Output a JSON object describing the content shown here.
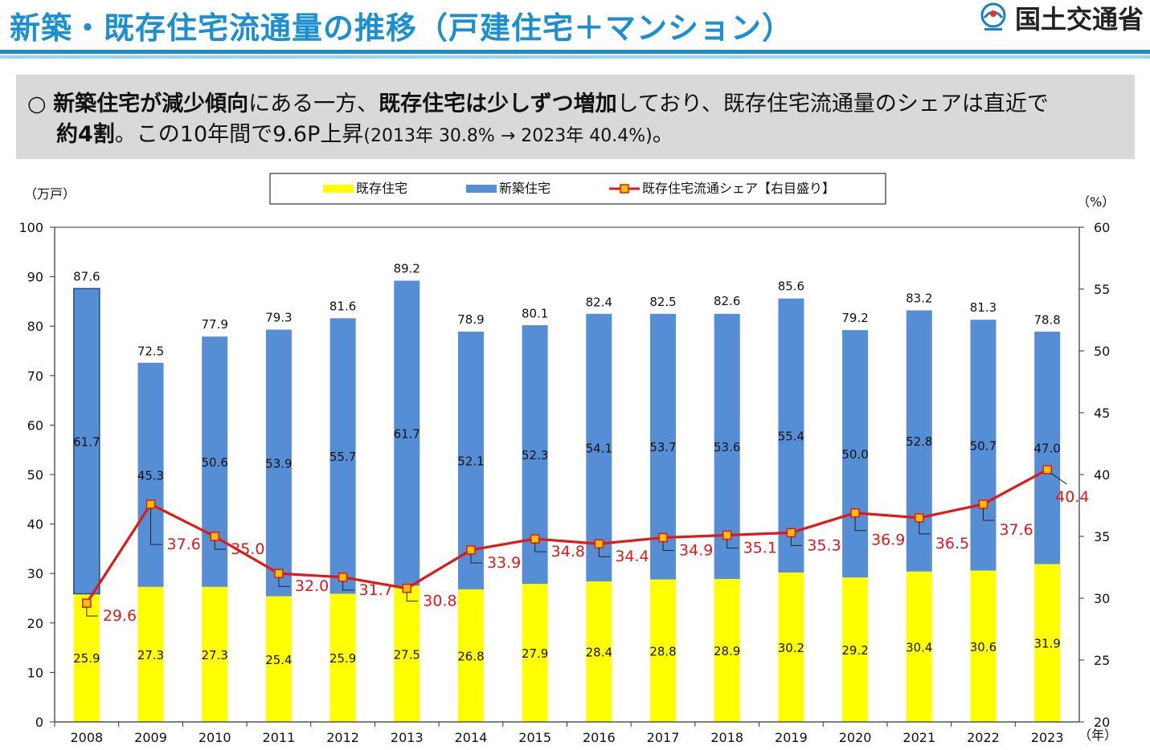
{
  "header": {
    "title": "新築・既存住宅流通量の推移（戸建住宅＋マンション）",
    "ministry": "国土交通省"
  },
  "summary": {
    "bullet": "○",
    "p1": "新築住宅が減少傾向",
    "p2": "にある一方、",
    "p3": "既存住宅は少しずつ増加",
    "p4": "しており、既存住宅流通量のシェアは直近で",
    "p5": "約4割",
    "p6": "。この10年間で9.6P上昇",
    "p7": "(2013年 30.8% → 2023年 40.4%)",
    "p8": "。"
  },
  "chart_data": {
    "type": "bar",
    "stacked": true,
    "categories": [
      "2008",
      "2009",
      "2010",
      "2011",
      "2012",
      "2013",
      "2014",
      "2015",
      "2016",
      "2017",
      "2018",
      "2019",
      "2020",
      "2021",
      "2022",
      "2023"
    ],
    "series": [
      {
        "name": "既存住宅",
        "color": "#ffff00",
        "values": [
          25.9,
          27.3,
          27.3,
          25.4,
          25.9,
          27.5,
          26.8,
          27.9,
          28.4,
          28.8,
          28.9,
          30.2,
          29.2,
          30.4,
          30.6,
          31.9
        ]
      },
      {
        "name": "新築住宅",
        "color": "#558ed5",
        "values": [
          61.7,
          45.3,
          50.6,
          53.9,
          55.7,
          61.7,
          52.1,
          52.3,
          54.1,
          53.7,
          53.6,
          55.4,
          50.0,
          52.8,
          50.7,
          47.0
        ]
      }
    ],
    "totals": [
      87.6,
      72.5,
      77.9,
      79.3,
      81.6,
      89.2,
      78.9,
      80.1,
      82.4,
      82.5,
      82.6,
      85.6,
      79.2,
      83.2,
      81.3,
      78.8
    ],
    "line_series": {
      "name": "既存住宅流通シェア【右目盛り】",
      "color": "#e01818",
      "marker_color": "#ffc000",
      "axis": "right",
      "values": [
        29.6,
        37.6,
        35.0,
        32.0,
        31.7,
        30.8,
        33.9,
        34.8,
        34.4,
        34.9,
        35.1,
        35.3,
        36.9,
        36.5,
        37.6,
        40.4
      ]
    },
    "y_left": {
      "unit": "（万戸）",
      "min": 0,
      "max": 100,
      "ticks": [
        "0",
        "10",
        "20",
        "30",
        "40",
        "50",
        "60",
        "70",
        "80",
        "90",
        "100"
      ]
    },
    "y_right": {
      "unit": "（%）",
      "min": 20,
      "max": 60,
      "ticks": [
        "20",
        "25",
        "30",
        "35",
        "40",
        "45",
        "50",
        "55",
        "60"
      ]
    },
    "x_unit": "（年）",
    "gridlines": false
  }
}
